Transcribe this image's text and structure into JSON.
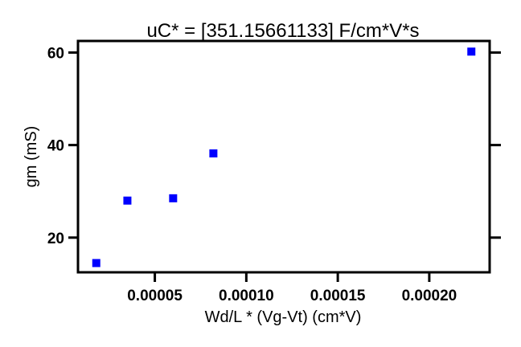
{
  "chart_data": {
    "type": "scatter",
    "title": "uC* = [351.15661133] F/cm*V*s",
    "xlabel": "Wd/L * (Vg-Vt) (cm*V)",
    "ylabel": "gm (mS)",
    "xlim": [
      8e-06,
      0.000233
    ],
    "ylim": [
      12.5,
      62.5
    ],
    "xticks": [
      5e-05,
      0.0001,
      0.00015,
      0.0002
    ],
    "xtick_labels": [
      "0.00005",
      "0.00010",
      "0.00015",
      "0.00020"
    ],
    "yticks": [
      20,
      40,
      60
    ],
    "ytick_labels": [
      "20",
      "40",
      "60"
    ],
    "grid": false,
    "marker": "square",
    "marker_color": "#0000ff",
    "points": [
      {
        "x": 1.8e-05,
        "y": 14.5
      },
      {
        "x": 3.5e-05,
        "y": 28.0
      },
      {
        "x": 6e-05,
        "y": 28.5
      },
      {
        "x": 8.2e-05,
        "y": 38.2
      },
      {
        "x": 0.000223,
        "y": 60.2
      }
    ]
  }
}
